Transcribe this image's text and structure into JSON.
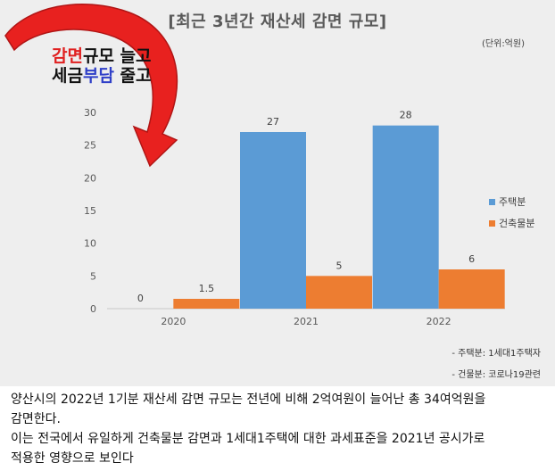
{
  "title": "[최근 3년간 재산세 감면 규모]",
  "unit": "(단위:억원)",
  "callout": {
    "line1_red": "감면",
    "line1_rest": "규모 늘고",
    "line2_start": "세금",
    "line2_blue": "부담",
    "line2_end": " 줄고"
  },
  "notes": [
    "- 주택분: 1세대1주택자",
    "- 건물분: 코로나19관련"
  ],
  "caption": {
    "line1": "양산시의 2022년 1기분 재산세 감면 규모는 전년에 비해 2억여원이 늘어난 총 34여억원을",
    "line2": "감면한다.",
    "line3": "이는 전국에서 유일하게 건축물분 감면과 1세대1주택에 대한 과세표준을 2021년 공시가로",
    "line4": "적용한 영향으로 보인다"
  },
  "colors": {
    "housing": "#5b9bd5",
    "building": "#ed7d31",
    "arrow": "#e8211f"
  },
  "chart_data": {
    "type": "bar",
    "categories": [
      "2020",
      "2021",
      "2022"
    ],
    "series": [
      {
        "name": "주택분",
        "values": [
          0,
          27,
          28
        ]
      },
      {
        "name": "건축물분",
        "values": [
          1.5,
          5,
          6
        ]
      }
    ],
    "data_labels": [
      [
        "0",
        "27",
        "28"
      ],
      [
        "1.5",
        "5",
        "6"
      ]
    ],
    "yticks": [
      "0",
      "5",
      "10",
      "15",
      "20",
      "25",
      "30"
    ],
    "ylim": [
      0,
      30
    ],
    "grid": false,
    "legend_position": "right"
  }
}
